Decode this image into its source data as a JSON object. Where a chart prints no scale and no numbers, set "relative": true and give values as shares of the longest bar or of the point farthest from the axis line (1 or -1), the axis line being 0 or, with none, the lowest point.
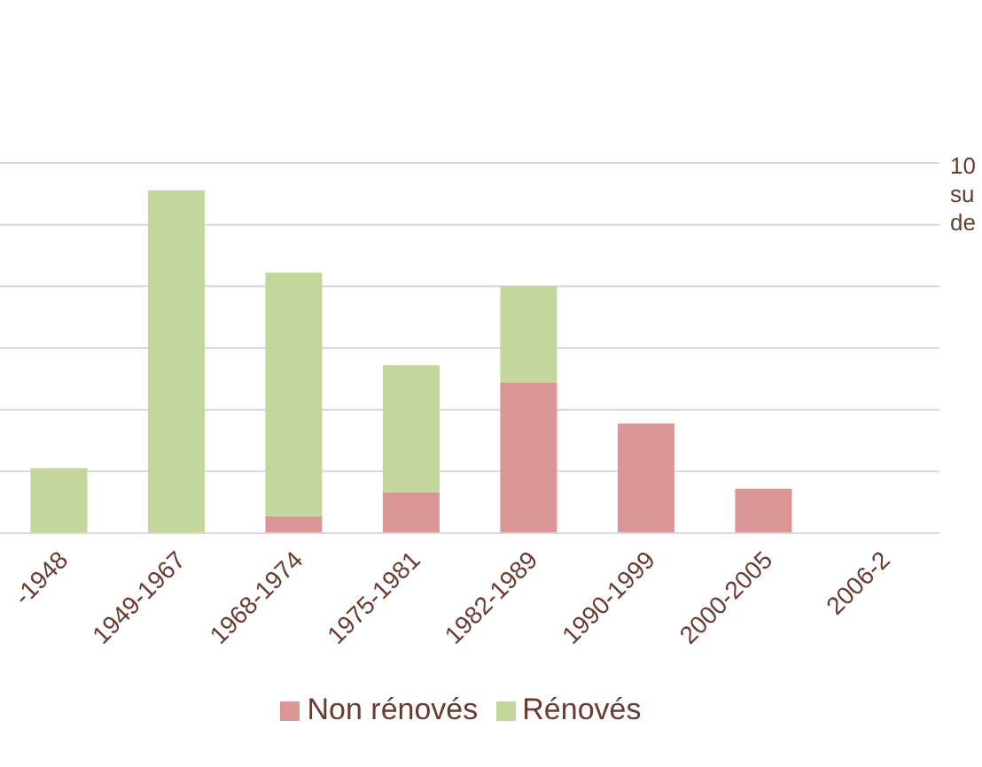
{
  "chart_data": {
    "type": "bar",
    "stacked": true,
    "relative": true,
    "categories": [
      "-1948",
      "1949-1967",
      "1968-1974",
      "1975-1981",
      "1982-1989",
      "1990-1999",
      "2000-2005",
      "2006-2"
    ],
    "series": [
      {
        "name": "Non rénovés",
        "color": "#d99694",
        "values": [
          0,
          0,
          0.05,
          0.12,
          0.44,
          0.32,
          0.13,
          null
        ]
      },
      {
        "name": "Rénovés",
        "color": "#c3d69b",
        "values": [
          0.19,
          1,
          0.71,
          0.37,
          0.28,
          0,
          0,
          null
        ]
      }
    ],
    "grid": "y",
    "legend": "bottom",
    "annotations": [
      "10",
      "su",
      "de"
    ]
  }
}
